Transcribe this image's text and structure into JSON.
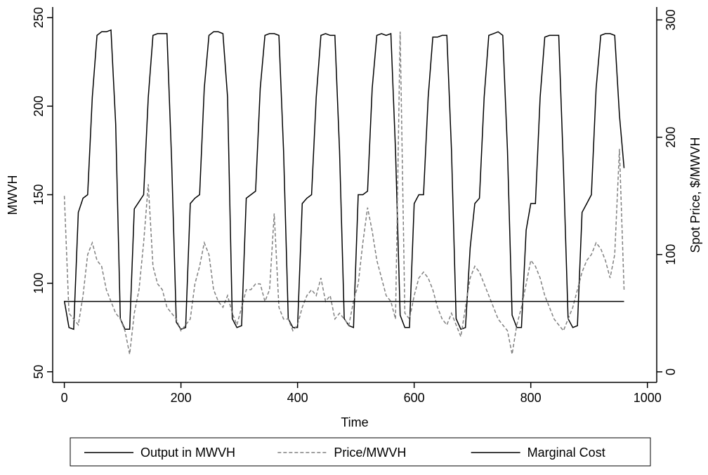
{
  "chart_data": {
    "type": "line",
    "x_label": "Time",
    "y_label": "MWVH",
    "y2_label": "Spot Price, $/MWVH",
    "x": [
      0,
      8,
      16,
      24,
      32,
      40,
      48,
      56,
      64,
      72,
      80,
      88,
      96,
      104,
      112,
      120,
      128,
      136,
      144,
      152,
      160,
      168,
      176,
      184,
      192,
      200,
      208,
      216,
      224,
      232,
      240,
      248,
      256,
      264,
      272,
      280,
      288,
      296,
      304,
      312,
      320,
      328,
      336,
      344,
      352,
      360,
      368,
      376,
      384,
      392,
      400,
      408,
      416,
      424,
      432,
      440,
      448,
      456,
      464,
      472,
      480,
      488,
      496,
      504,
      512,
      520,
      528,
      536,
      544,
      552,
      560,
      568,
      576,
      584,
      592,
      600,
      608,
      616,
      624,
      632,
      640,
      648,
      656,
      664,
      672,
      680,
      688,
      696,
      704,
      712,
      720,
      728,
      736,
      744,
      752,
      760,
      768,
      776,
      784,
      792,
      800,
      808,
      816,
      824,
      832,
      840,
      848,
      856,
      864,
      872,
      880,
      888,
      896,
      904,
      912,
      920,
      928,
      936,
      944,
      952,
      960
    ],
    "series": [
      {
        "name": "Output in MWVH",
        "color": "#000000",
        "dash": "none",
        "axis": "y",
        "values": [
          90,
          75,
          74,
          140,
          148,
          150,
          205,
          240,
          242,
          242,
          243,
          190,
          80,
          74,
          74,
          142,
          146,
          150,
          205,
          240,
          241,
          241,
          241,
          170,
          78,
          74,
          75,
          145,
          148,
          150,
          210,
          240,
          242,
          242,
          241,
          205,
          80,
          75,
          76,
          148,
          150,
          152,
          210,
          240,
          241,
          241,
          240,
          175,
          80,
          75,
          75,
          145,
          148,
          150,
          205,
          240,
          241,
          240,
          240,
          175,
          80,
          76,
          75,
          150,
          150,
          152,
          210,
          240,
          241,
          240,
          241,
          175,
          82,
          75,
          75,
          145,
          150,
          150,
          205,
          239,
          239,
          240,
          240,
          175,
          80,
          74,
          75,
          120,
          145,
          148,
          205,
          240,
          241,
          242,
          240,
          175,
          82,
          75,
          75,
          130,
          145,
          145,
          205,
          239,
          240,
          240,
          240,
          165,
          80,
          75,
          76,
          140,
          145,
          150,
          210,
          240,
          241,
          241,
          240,
          195,
          165
        ]
      },
      {
        "name": "Price/MWVH",
        "color": "#808080",
        "dash": "5,3",
        "axis": "y2",
        "values": [
          150,
          50,
          45,
          40,
          65,
          100,
          110,
          95,
          90,
          70,
          60,
          50,
          45,
          35,
          15,
          50,
          70,
          110,
          160,
          90,
          75,
          70,
          55,
          50,
          45,
          35,
          40,
          45,
          75,
          90,
          110,
          100,
          70,
          60,
          55,
          65,
          50,
          40,
          55,
          70,
          70,
          75,
          75,
          60,
          70,
          135,
          55,
          45,
          45,
          35,
          40,
          55,
          65,
          70,
          65,
          80,
          60,
          65,
          45,
          50,
          45,
          40,
          60,
          75,
          110,
          140,
          120,
          95,
          80,
          65,
          60,
          45,
          290,
          50,
          45,
          65,
          80,
          85,
          80,
          70,
          55,
          45,
          40,
          50,
          40,
          30,
          55,
          80,
          90,
          85,
          75,
          65,
          55,
          45,
          40,
          35,
          15,
          40,
          55,
          75,
          95,
          90,
          80,
          65,
          55,
          45,
          40,
          35,
          45,
          55,
          70,
          85,
          95,
          100,
          110,
          105,
          95,
          80,
          100,
          190,
          70
        ]
      },
      {
        "name": "Marginal Cost",
        "color": "#000000",
        "dash": "none",
        "axis": "y2",
        "x": [
          0,
          960
        ],
        "values": [
          60,
          60
        ]
      }
    ],
    "xlim": [
      -20,
      1016
    ],
    "xticks": [
      0,
      200,
      400,
      600,
      800,
      1000
    ],
    "ylim": [
      44,
      256
    ],
    "yticks": [
      50,
      100,
      150,
      200,
      250
    ],
    "y2lim": [
      -9,
      311
    ],
    "y2ticks": [
      0,
      100,
      200,
      300
    ],
    "legend": "bottom"
  }
}
